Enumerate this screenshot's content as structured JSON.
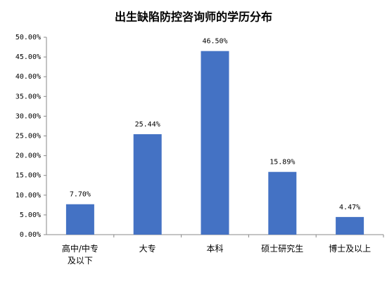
{
  "chart_data": {
    "type": "bar",
    "title": "出生缺陷防控咨询师的学历分布",
    "categories": [
      "高中/中专及以下",
      "大专",
      "本科",
      "硕士研究生",
      "博士及以上"
    ],
    "values": [
      7.7,
      25.44,
      46.5,
      15.89,
      4.47
    ],
    "value_labels": [
      "7.70%",
      "25.44%",
      "46.50%",
      "15.89%",
      "4.47%"
    ],
    "color": "#4472c4",
    "ylim": [
      0,
      50
    ],
    "yticks": [
      {
        "value": 0,
        "label": "0.00%"
      },
      {
        "value": 5,
        "label": "5.00%"
      },
      {
        "value": 10,
        "label": "10.00%"
      },
      {
        "value": 15,
        "label": "15.00%"
      },
      {
        "value": 20,
        "label": "20.00%"
      },
      {
        "value": 25,
        "label": "25.00%"
      },
      {
        "value": 30,
        "label": "30.00%"
      },
      {
        "value": 35,
        "label": "35.00%"
      },
      {
        "value": 40,
        "label": "40.00%"
      },
      {
        "value": 45,
        "label": "45.00%"
      },
      {
        "value": 50,
        "label": "50.00%"
      }
    ],
    "grid": false
  }
}
